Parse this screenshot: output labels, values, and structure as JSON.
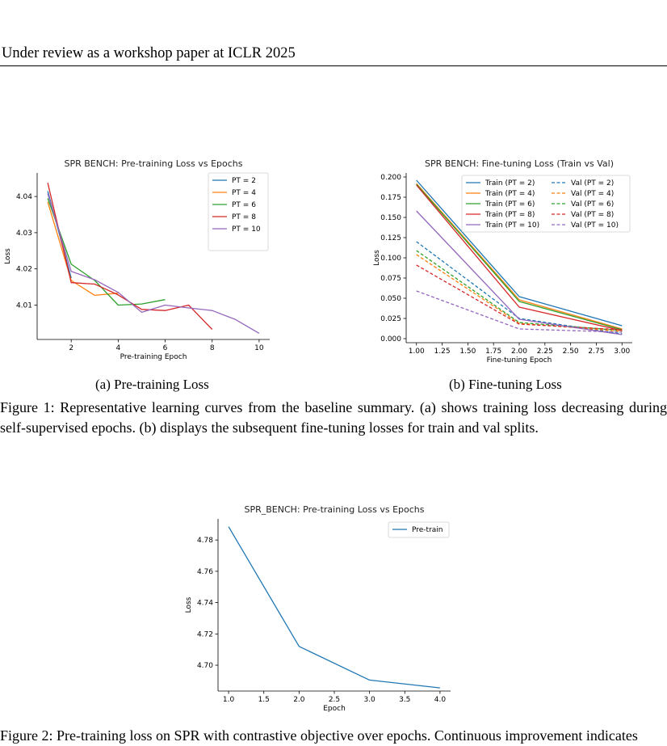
{
  "header": {
    "text": "Under review as a workshop paper at ICLR 2025"
  },
  "figure1": {
    "subcaption_a": "(a) Pre-training Loss",
    "subcaption_b": "(b) Fine-tuning Loss",
    "caption": "Figure 1: Representative learning curves from the baseline summary. (a) shows training loss decreasing during self-supervised epochs. (b) displays the subsequent fine-tuning losses for train and val splits."
  },
  "figure2": {
    "caption": "Figure 2: Pre-training loss on SPR with contrastive objective over epochs. Continuous improvement indicates"
  },
  "colors": {
    "blue": "#1f77b4",
    "orange": "#ff7f0e",
    "green": "#2ca02c",
    "red": "#d62728",
    "purple": "#9467bd"
  },
  "chart_data": [
    {
      "type": "line",
      "title": "SPR BENCH: Pre-training Loss vs Epochs",
      "xlabel": "Pre-training Epoch",
      "ylabel": "Loss",
      "xlim": [
        0.55,
        10.45
      ],
      "ylim": [
        4.0005,
        4.0465
      ],
      "xticks": [
        2,
        4,
        6,
        8,
        10
      ],
      "xtick_labels": [
        "2",
        "4",
        "6",
        "8",
        "10"
      ],
      "yticks": [
        4.01,
        4.02,
        4.03,
        4.04
      ],
      "ytick_labels": [
        "4.01",
        "4.02",
        "4.03",
        "4.04"
      ],
      "legend": "top-right",
      "grid": false,
      "series": [
        {
          "name": "PT = 2",
          "color": "#1f77b4",
          "style": "solid",
          "x": [
            1,
            2
          ],
          "y": [
            4.0415,
            4.0175
          ]
        },
        {
          "name": "PT = 4",
          "color": "#ff7f0e",
          "style": "solid",
          "x": [
            1,
            2,
            3,
            4
          ],
          "y": [
            4.0385,
            4.0168,
            4.0127,
            4.0133
          ]
        },
        {
          "name": "PT = 6",
          "color": "#2ca02c",
          "style": "solid",
          "x": [
            1,
            2,
            3,
            4,
            5,
            6
          ],
          "y": [
            4.0395,
            4.0213,
            4.0168,
            4.01,
            4.0103,
            4.0115
          ]
        },
        {
          "name": "PT = 8",
          "color": "#d62728",
          "style": "solid",
          "x": [
            1,
            2,
            3,
            4,
            5,
            6,
            7,
            8
          ],
          "y": [
            4.0438,
            4.0162,
            4.0158,
            4.0128,
            4.0088,
            4.0085,
            4.01,
            4.0033
          ]
        },
        {
          "name": "PT = 10",
          "color": "#9467bd",
          "style": "solid",
          "x": [
            1,
            2,
            3,
            4,
            5,
            6,
            7,
            8,
            9,
            10
          ],
          "y": [
            4.0408,
            4.0193,
            4.017,
            4.0135,
            4.008,
            4.01,
            4.0092,
            4.0085,
            4.006,
            4.0022
          ]
        }
      ]
    },
    {
      "type": "line",
      "title": "SPR BENCH: Fine-tuning Loss (Train vs Val)",
      "xlabel": "Fine-tuning Epoch",
      "ylabel": "Loss",
      "xlim": [
        0.9,
        3.1
      ],
      "ylim": [
        -0.005,
        0.205
      ],
      "xticks": [
        1.0,
        1.25,
        1.5,
        1.75,
        2.0,
        2.25,
        2.5,
        2.75,
        3.0
      ],
      "xtick_labels": [
        "1.00",
        "1.25",
        "1.50",
        "1.75",
        "2.00",
        "2.25",
        "2.50",
        "2.75",
        "3.00"
      ],
      "yticks": [
        0,
        0.025,
        0.05,
        0.075,
        0.1,
        0.125,
        0.15,
        0.175,
        0.2
      ],
      "ytick_labels": [
        "0.000",
        "0.025",
        "0.050",
        "0.075",
        "0.100",
        "0.125",
        "0.150",
        "0.175",
        "0.200"
      ],
      "legend": "top-right",
      "legend_columns": 2,
      "grid": false,
      "series": [
        {
          "name": "Train (PT = 2)",
          "color": "#1f77b4",
          "style": "solid",
          "x": [
            1,
            2,
            3
          ],
          "y": [
            0.196,
            0.052,
            0.016
          ]
        },
        {
          "name": "Val (PT = 2)",
          "color": "#1f77b4",
          "style": "dashed",
          "x": [
            1,
            2,
            3
          ],
          "y": [
            0.12,
            0.025,
            0.006
          ]
        },
        {
          "name": "Train (PT = 4)",
          "color": "#ff7f0e",
          "style": "solid",
          "x": [
            1,
            2,
            3
          ],
          "y": [
            0.192,
            0.048,
            0.012
          ]
        },
        {
          "name": "Val (PT = 4)",
          "color": "#ff7f0e",
          "style": "dashed",
          "x": [
            1,
            2,
            3
          ],
          "y": [
            0.104,
            0.019,
            0.009
          ]
        },
        {
          "name": "Train (PT = 6)",
          "color": "#2ca02c",
          "style": "solid",
          "x": [
            1,
            2,
            3
          ],
          "y": [
            0.191,
            0.046,
            0.011
          ]
        },
        {
          "name": "Val (PT = 6)",
          "color": "#2ca02c",
          "style": "dashed",
          "x": [
            1,
            2,
            3
          ],
          "y": [
            0.109,
            0.02,
            0.01
          ]
        },
        {
          "name": "Train (PT = 8)",
          "color": "#d62728",
          "style": "solid",
          "x": [
            1,
            2,
            3
          ],
          "y": [
            0.19,
            0.039,
            0.01
          ]
        },
        {
          "name": "Val (PT = 8)",
          "color": "#d62728",
          "style": "dashed",
          "x": [
            1,
            2,
            3
          ],
          "y": [
            0.091,
            0.018,
            0.011
          ]
        },
        {
          "name": "Train (PT = 10)",
          "color": "#9467bd",
          "style": "solid",
          "x": [
            1,
            2,
            3
          ],
          "y": [
            0.158,
            0.024,
            0.005
          ]
        },
        {
          "name": "Val (PT = 10)",
          "color": "#9467bd",
          "style": "dashed",
          "x": [
            1,
            2,
            3
          ],
          "y": [
            0.059,
            0.012,
            0.008
          ]
        }
      ]
    },
    {
      "type": "line",
      "title": "SPR_BENCH: Pre-training Loss vs Epochs",
      "xlabel": "Epoch",
      "ylabel": "Loss",
      "xlim": [
        0.85,
        4.15
      ],
      "ylim": [
        4.6835,
        4.7935
      ],
      "xticks": [
        1.0,
        1.5,
        2.0,
        2.5,
        3.0,
        3.5,
        4.0
      ],
      "xtick_labels": [
        "1.0",
        "1.5",
        "2.0",
        "2.5",
        "3.0",
        "3.5",
        "4.0"
      ],
      "yticks": [
        4.7,
        4.72,
        4.74,
        4.76,
        4.78
      ],
      "ytick_labels": [
        "4.70",
        "4.72",
        "4.74",
        "4.76",
        "4.78"
      ],
      "legend": "top-right",
      "grid": false,
      "series": [
        {
          "name": "Pre-train",
          "color": "#1f77b4",
          "style": "solid",
          "x": [
            1,
            2,
            3,
            4
          ],
          "y": [
            4.7885,
            4.712,
            4.6905,
            4.6855
          ]
        }
      ]
    }
  ]
}
